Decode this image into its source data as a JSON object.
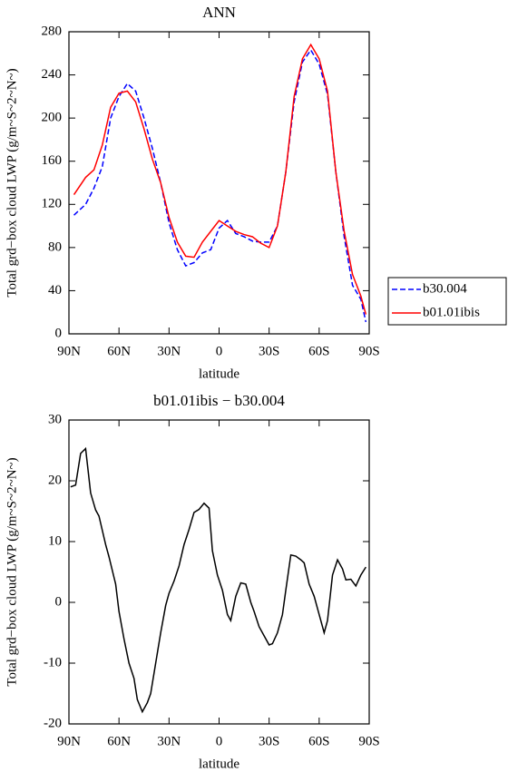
{
  "chart_data": [
    {
      "type": "line",
      "title": "ANN",
      "xlabel": "latitude",
      "ylabel": "Total grd−box cloud LWP (g/m~S~2~N~)",
      "x": [
        87,
        80,
        75,
        70,
        65,
        60,
        55,
        50,
        45,
        40,
        35,
        30,
        25,
        20,
        15,
        10,
        5,
        0,
        -5,
        -10,
        -15,
        -20,
        -25,
        -30,
        -35,
        -40,
        -45,
        -50,
        -55,
        -60,
        -65,
        -70,
        -75,
        -80,
        -85,
        -88
      ],
      "series": [
        {
          "name": "b30.004",
          "color": "#0000ff",
          "linestyle": "dashed",
          "values": [
            110,
            120,
            135,
            155,
            200,
            220,
            232,
            225,
            200,
            172,
            140,
            103,
            78,
            63,
            66,
            75,
            78,
            98,
            105,
            93,
            90,
            86,
            85,
            85,
            100,
            150,
            215,
            252,
            263,
            250,
            222,
            150,
            90,
            45,
            32,
            11
          ]
        },
        {
          "name": "b01.01ibis",
          "color": "#ff0000",
          "linestyle": "solid",
          "values": [
            129,
            145,
            152,
            175,
            210,
            223,
            225,
            215,
            190,
            162,
            140,
            108,
            85,
            72,
            71,
            85,
            95,
            105,
            100,
            95,
            92,
            90,
            84,
            80,
            100,
            150,
            220,
            255,
            268,
            255,
            225,
            150,
            95,
            55,
            35,
            18
          ]
        }
      ],
      "xlim": [
        90,
        -90
      ],
      "xticks": [
        {
          "value": 90,
          "label": "90N"
        },
        {
          "value": 60,
          "label": "60N"
        },
        {
          "value": 30,
          "label": "30N"
        },
        0,
        {
          "value": -30,
          "label": "30S"
        },
        {
          "value": -60,
          "label": "60S"
        },
        {
          "value": -90,
          "label": "90S"
        }
      ],
      "ylim": [
        0,
        280
      ],
      "yticks": [
        0,
        40,
        80,
        120,
        160,
        200,
        240,
        280
      ],
      "legend": "right"
    },
    {
      "type": "line",
      "title": "b01.01ibis − b30.004",
      "xlabel": "latitude",
      "ylabel": "Total grd−box cloud LWP (g/m~S~2~N~)",
      "x": [
        89,
        86,
        83,
        80,
        77,
        74,
        72,
        68,
        66,
        62,
        60,
        57,
        54,
        51,
        49,
        46,
        43,
        41,
        38,
        35,
        32,
        30,
        27,
        24,
        21,
        18,
        15,
        12,
        9,
        6,
        4,
        1,
        -2,
        -5,
        -7,
        -10,
        -13,
        -16,
        -19,
        -21,
        -24,
        -27,
        -30,
        -32,
        -35,
        -38,
        -40,
        -43,
        -46,
        -49,
        -51,
        -54,
        -57,
        -60,
        -63,
        -65,
        -68,
        -71,
        -74,
        -76,
        -79,
        -82,
        -85,
        -88
      ],
      "series": [
        {
          "name": "b01.01ibis − b30.004",
          "color": "#000000",
          "linestyle": "solid",
          "values": [
            19,
            19.3,
            24.5,
            25.3,
            18,
            15.2,
            14.2,
            9.5,
            7.5,
            3,
            -1.5,
            -6,
            -10,
            -12.5,
            -16,
            -18,
            -16.5,
            -15,
            -10,
            -5,
            -0.5,
            1.5,
            3.5,
            6,
            9.5,
            12,
            14.8,
            15.3,
            16.3,
            15.5,
            8.5,
            4.5,
            2,
            -2,
            -3,
            1,
            3.2,
            3,
            0,
            -1.5,
            -4,
            -5.5,
            -7,
            -6.8,
            -5,
            -2,
            2,
            7.8,
            7.6,
            7,
            6.5,
            3,
            1,
            -2,
            -5,
            -3,
            4.5,
            7,
            5.5,
            3.7,
            3.8,
            2.7,
            4.5,
            5.8
          ]
        }
      ],
      "xlim": [
        90,
        -90
      ],
      "xticks": [
        {
          "value": 90,
          "label": "90N"
        },
        {
          "value": 60,
          "label": "60N"
        },
        {
          "value": 30,
          "label": "30N"
        },
        0,
        {
          "value": -30,
          "label": "30S"
        },
        {
          "value": -60,
          "label": "60S"
        },
        {
          "value": -90,
          "label": "90S"
        }
      ],
      "ylim": [
        -20,
        30
      ],
      "yticks": [
        -20,
        -10,
        0,
        10,
        20,
        30
      ]
    }
  ]
}
